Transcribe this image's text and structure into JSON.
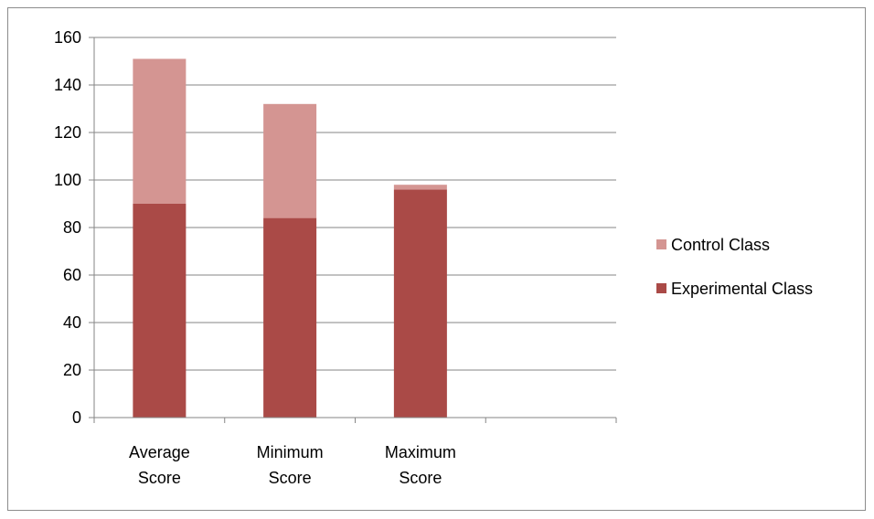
{
  "chart_data": {
    "type": "bar",
    "stacked": true,
    "categories": [
      [
        "Average",
        "Score"
      ],
      [
        "Minimum",
        "Score"
      ],
      [
        "Maximum",
        "Score"
      ],
      []
    ],
    "series": [
      {
        "name": "Experimental Class",
        "values": [
          90,
          84,
          96,
          null
        ],
        "color": "#aa4a47"
      },
      {
        "name": "Control Class",
        "values": [
          61,
          48,
          2,
          null
        ],
        "color": "#d49592"
      }
    ],
    "ylim": [
      0,
      160
    ],
    "yticks": [
      0,
      20,
      40,
      60,
      80,
      100,
      120,
      140,
      160
    ],
    "grid": true,
    "legend_position": "right",
    "legend_order": [
      1,
      0
    ],
    "axis_color": "#868686",
    "grid_color": "#868686"
  }
}
